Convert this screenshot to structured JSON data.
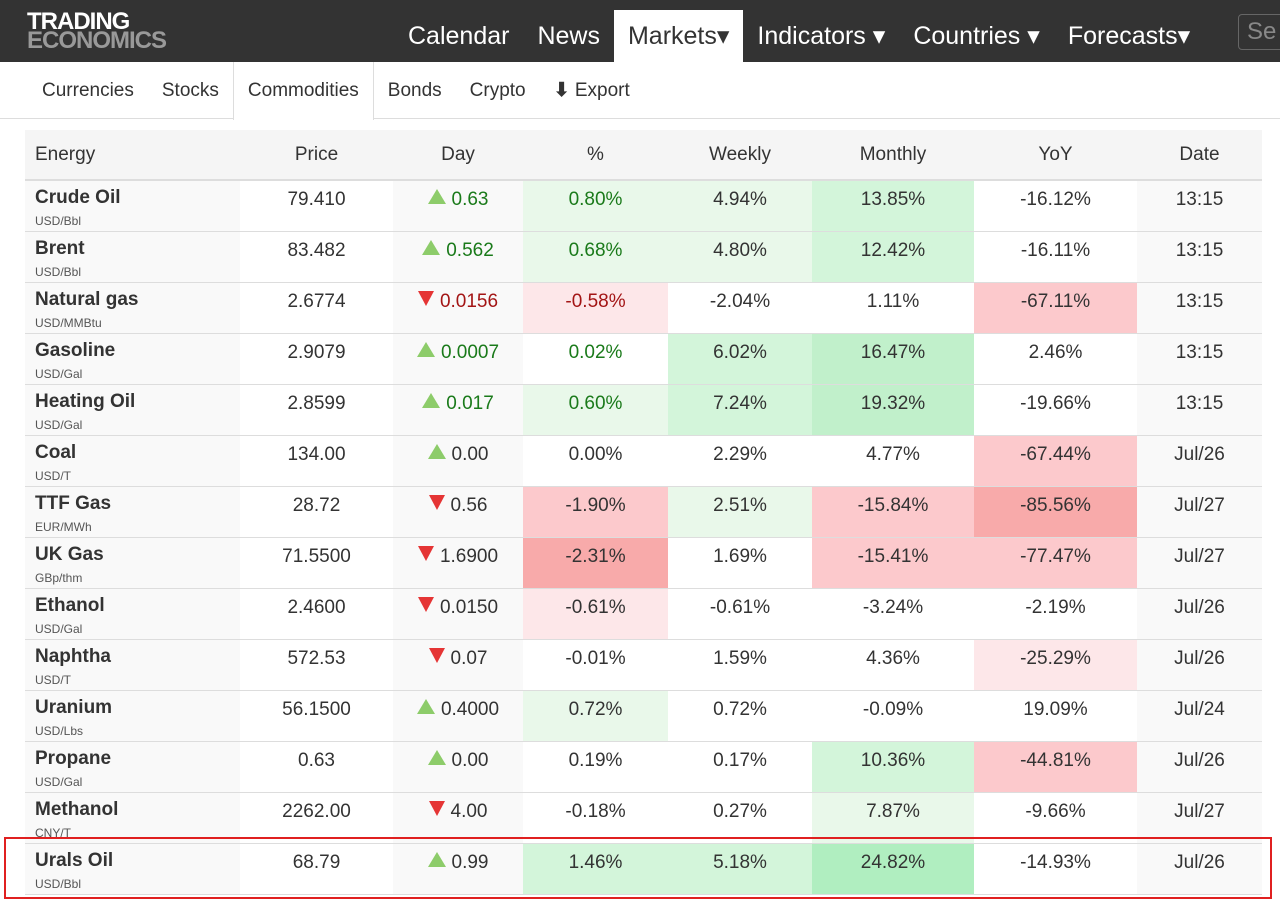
{
  "logo": {
    "line1": "TRADING",
    "line2": "ECONOMICS"
  },
  "nav": [
    {
      "label": "Calendar"
    },
    {
      "label": "News"
    },
    {
      "label": "Markets▾",
      "active": true
    },
    {
      "label": "Indicators ▾"
    },
    {
      "label": "Countries ▾"
    },
    {
      "label": "Forecasts▾"
    }
  ],
  "search": {
    "placeholder": "Se"
  },
  "subnav": [
    {
      "label": "Currencies"
    },
    {
      "label": "Stocks"
    },
    {
      "label": "Commodities",
      "active": true
    },
    {
      "label": "Bonds"
    },
    {
      "label": "Crypto"
    },
    {
      "label": "Export",
      "icon": "download-icon"
    }
  ],
  "table": {
    "headers": [
      "Energy",
      "Price",
      "Day",
      "%",
      "Weekly",
      "Monthly",
      "YoY",
      "Date"
    ],
    "rows": [
      {
        "name": "Crude Oil",
        "unit": "USD/Bbl",
        "price": "79.410",
        "dir": "up",
        "day": "0.63",
        "pct": "0.80%",
        "weekly": "4.94%",
        "monthly": "13.85%",
        "yoy": "-16.12%",
        "date": "13:15",
        "heat": [
          "g1",
          "g1",
          "g2",
          ""
        ],
        "colored": true
      },
      {
        "name": "Brent",
        "unit": "USD/Bbl",
        "price": "83.482",
        "dir": "up",
        "day": "0.562",
        "pct": "0.68%",
        "weekly": "4.80%",
        "monthly": "12.42%",
        "yoy": "-16.11%",
        "date": "13:15",
        "heat": [
          "g1",
          "g1",
          "g2",
          ""
        ],
        "colored": true
      },
      {
        "name": "Natural gas",
        "unit": "USD/MMBtu",
        "price": "2.6774",
        "dir": "down",
        "day": "0.0156",
        "pct": "-0.58%",
        "weekly": "-2.04%",
        "monthly": "1.11%",
        "yoy": "-67.11%",
        "date": "13:15",
        "heat": [
          "r1",
          "",
          "",
          "r2"
        ],
        "colored": true
      },
      {
        "name": "Gasoline",
        "unit": "USD/Gal",
        "price": "2.9079",
        "dir": "up",
        "day": "0.0007",
        "pct": "0.02%",
        "weekly": "6.02%",
        "monthly": "16.47%",
        "yoy": "2.46%",
        "date": "13:15",
        "heat": [
          "",
          "g2",
          "g3",
          ""
        ],
        "colored": true
      },
      {
        "name": "Heating Oil",
        "unit": "USD/Gal",
        "price": "2.8599",
        "dir": "up",
        "day": "0.017",
        "pct": "0.60%",
        "weekly": "7.24%",
        "monthly": "19.32%",
        "yoy": "-19.66%",
        "date": "13:15",
        "heat": [
          "g1",
          "g2",
          "g3",
          ""
        ],
        "colored": true
      },
      {
        "name": "Coal",
        "unit": "USD/T",
        "price": "134.00",
        "dir": "up",
        "day": "0.00",
        "pct": "0.00%",
        "weekly": "2.29%",
        "monthly": "4.77%",
        "yoy": "-67.44%",
        "date": "Jul/26",
        "heat": [
          "",
          "",
          "",
          "r2"
        ]
      },
      {
        "name": "TTF Gas",
        "unit": "EUR/MWh",
        "price": "28.72",
        "dir": "down",
        "day": "0.56",
        "pct": "-1.90%",
        "weekly": "2.51%",
        "monthly": "-15.84%",
        "yoy": "-85.56%",
        "date": "Jul/27",
        "heat": [
          "r2",
          "g1",
          "r2",
          "r3"
        ]
      },
      {
        "name": "UK Gas",
        "unit": "GBp/thm",
        "price": "71.5500",
        "dir": "down",
        "day": "1.6900",
        "pct": "-2.31%",
        "weekly": "1.69%",
        "monthly": "-15.41%",
        "yoy": "-77.47%",
        "date": "Jul/27",
        "heat": [
          "r3",
          "",
          "r2",
          "r2"
        ]
      },
      {
        "name": "Ethanol",
        "unit": "USD/Gal",
        "price": "2.4600",
        "dir": "down",
        "day": "0.0150",
        "pct": "-0.61%",
        "weekly": "-0.61%",
        "monthly": "-3.24%",
        "yoy": "-2.19%",
        "date": "Jul/26",
        "heat": [
          "r1",
          "",
          "",
          ""
        ]
      },
      {
        "name": "Naphtha",
        "unit": "USD/T",
        "price": "572.53",
        "dir": "down",
        "day": "0.07",
        "pct": "-0.01%",
        "weekly": "1.59%",
        "monthly": "4.36%",
        "yoy": "-25.29%",
        "date": "Jul/26",
        "heat": [
          "",
          "",
          "",
          "r1"
        ]
      },
      {
        "name": "Uranium",
        "unit": "USD/Lbs",
        "price": "56.1500",
        "dir": "up",
        "day": "0.4000",
        "pct": "0.72%",
        "weekly": "0.72%",
        "monthly": "-0.09%",
        "yoy": "19.09%",
        "date": "Jul/24",
        "heat": [
          "g1",
          "",
          "",
          ""
        ]
      },
      {
        "name": "Propane",
        "unit": "USD/Gal",
        "price": "0.63",
        "dir": "up",
        "day": "0.00",
        "pct": "0.19%",
        "weekly": "0.17%",
        "monthly": "10.36%",
        "yoy": "-44.81%",
        "date": "Jul/26",
        "heat": [
          "",
          "",
          "g2",
          "r2"
        ]
      },
      {
        "name": "Methanol",
        "unit": "CNY/T",
        "price": "2262.00",
        "dir": "down",
        "day": "4.00",
        "pct": "-0.18%",
        "weekly": "0.27%",
        "monthly": "7.87%",
        "yoy": "-9.66%",
        "date": "Jul/27",
        "heat": [
          "",
          "",
          "g1",
          ""
        ]
      },
      {
        "name": "Urals Oil",
        "unit": "USD/Bbl",
        "price": "68.79",
        "dir": "up",
        "day": "0.99",
        "pct": "1.46%",
        "weekly": "5.18%",
        "monthly": "24.82%",
        "yoy": "-14.93%",
        "date": "Jul/26",
        "heat": [
          "g2",
          "g2",
          "g4",
          ""
        ],
        "highlighted": true
      }
    ]
  },
  "colors": {
    "topbar": "#333333",
    "highlight_border": "#e02020",
    "up_arrow": "#8dcc6a",
    "down_arrow": "#e53535"
  }
}
